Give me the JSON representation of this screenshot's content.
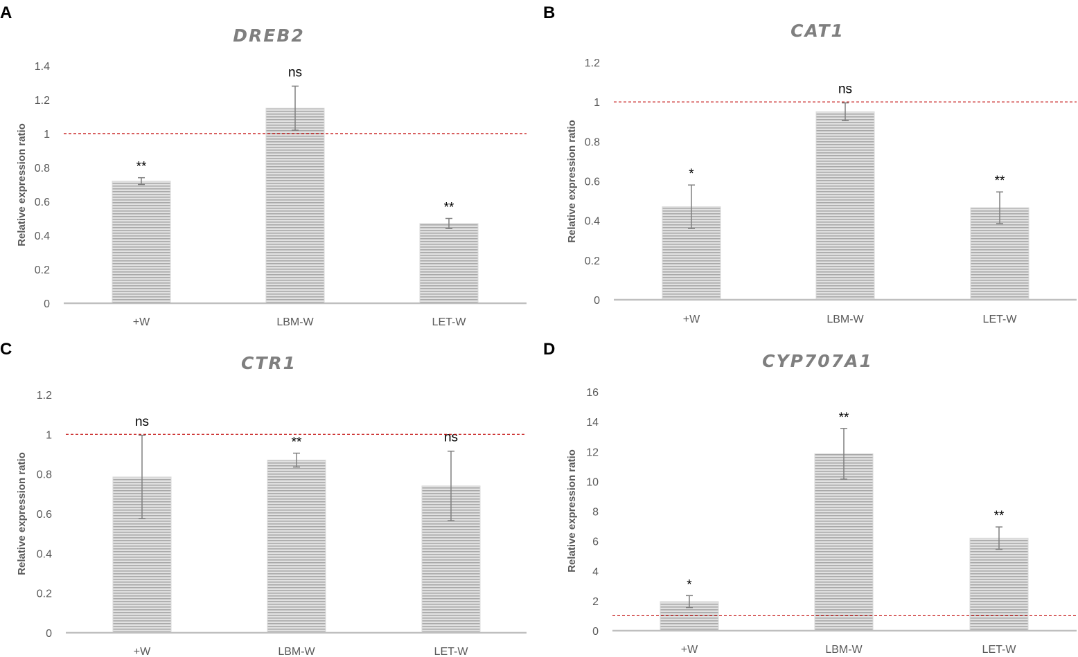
{
  "chart_data": [
    {
      "type": "bar",
      "panel": "A",
      "title": "DREB2",
      "xlabel": "",
      "ylabel": "Relative expression ratio",
      "categories": [
        "+W",
        "LBM-W",
        "LET-W"
      ],
      "values": [
        0.72,
        1.15,
        0.47
      ],
      "errors": [
        0.02,
        0.13,
        0.03
      ],
      "significance": [
        "**",
        "ns",
        "**"
      ],
      "ylim": [
        0,
        1.4
      ],
      "yticks": [
        0,
        0.2,
        0.4,
        0.6,
        0.8,
        1,
        1.2,
        1.4
      ],
      "ytick_labels": [
        "0",
        "0.2",
        "0.4",
        "0.6",
        "0.8",
        "1",
        "1.2",
        "1.4"
      ],
      "reference_line": 1,
      "grid": false
    },
    {
      "type": "bar",
      "panel": "B",
      "title": "CAT1",
      "xlabel": "",
      "ylabel": "Relative expression ratio",
      "categories": [
        "+W",
        "LBM-W",
        "LET-W"
      ],
      "values": [
        0.47,
        0.95,
        0.465
      ],
      "errors": [
        0.11,
        0.045,
        0.08
      ],
      "significance": [
        "*",
        "ns",
        "**"
      ],
      "ylim": [
        0,
        1.2
      ],
      "yticks": [
        0,
        0.2,
        0.4,
        0.6,
        0.8,
        1,
        1.2
      ],
      "ytick_labels": [
        "0",
        "0.2",
        "0.4",
        "0.6",
        "0.8",
        "1",
        "1.2"
      ],
      "reference_line": 1,
      "grid": false
    },
    {
      "type": "bar",
      "panel": "C",
      "title": "CTR1",
      "xlabel": "",
      "ylabel": "Relative expression ratio",
      "categories": [
        "+W",
        "LBM-W",
        "LET-W"
      ],
      "values": [
        0.785,
        0.87,
        0.74
      ],
      "errors": [
        0.21,
        0.035,
        0.175
      ],
      "significance": [
        "ns",
        "**",
        "ns"
      ],
      "ylim": [
        0,
        1.2
      ],
      "yticks": [
        0,
        0.2,
        0.4,
        0.6,
        0.8,
        1,
        1.2
      ],
      "ytick_labels": [
        "0",
        "0.2",
        "0.4",
        "0.6",
        "0.8",
        "1",
        "1.2"
      ],
      "reference_line": 1,
      "grid": false
    },
    {
      "type": "bar",
      "panel": "D",
      "title": "CYP707A1",
      "xlabel": "",
      "ylabel": "Relative expression ratio",
      "categories": [
        "+W",
        "LBM-W",
        "LET-W"
      ],
      "values": [
        1.95,
        11.85,
        6.2
      ],
      "errors": [
        0.4,
        1.7,
        0.75
      ],
      "significance": [
        "*",
        "**",
        "**"
      ],
      "ylim": [
        0,
        16
      ],
      "yticks": [
        0,
        2,
        4,
        6,
        8,
        10,
        12,
        14,
        16
      ],
      "ytick_labels": [
        "0",
        "2",
        "4",
        "6",
        "8",
        "10",
        "12",
        "14",
        "16"
      ],
      "reference_line": 1,
      "grid": false
    }
  ],
  "colors": {
    "bar_fill": "#d9d9d9",
    "bar_stripe": "#ababab",
    "axis": "#bfbfbf",
    "error_bar": "#7f7f7f",
    "reference_line": "#c00000"
  }
}
